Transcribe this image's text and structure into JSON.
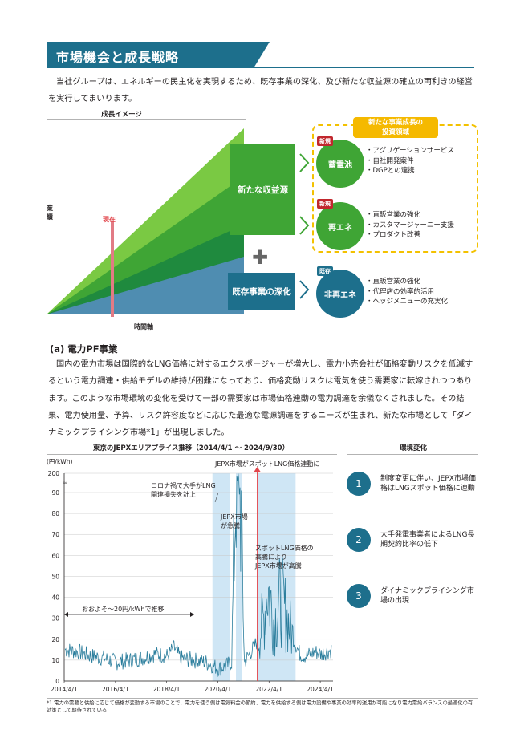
{
  "section": {
    "title": "市場機会と成長戦略",
    "intro": "当社グループは、エネルギーの民主化を実現するため、既存事業の深化、及び新たな収益源の確立の両利きの経営を実行してまいります。"
  },
  "growth_image": {
    "title": "成長イメージ",
    "ylabel": "業績",
    "xlabel": "時間軸",
    "now_label": "現在",
    "new_source_label": "新たな収益源",
    "existing_label": "既存事業の深化",
    "invest_area_label_1": "新たな事業成長の",
    "invest_area_label_2": "投資領域",
    "tag_new": "新規",
    "tag_existing": "既存",
    "battery": {
      "label": "蓄電池",
      "items": [
        "アグリゲーションサービス",
        "自社開発案件",
        "DGPとの連携"
      ]
    },
    "renewable": {
      "label": "再エネ",
      "items": [
        "直販営業の強化",
        "カスタマージャーニー支援",
        "プロダクト改善"
      ]
    },
    "non_renewable": {
      "label": "非再エネ",
      "items": [
        "直販営業の強化",
        "代理店の効率的活用",
        "ヘッジメニューの充実化"
      ]
    },
    "colors": {
      "green": "#3fa535",
      "blue": "#1d6f8c",
      "yellow": "#f5b900",
      "red": "#e2474d"
    }
  },
  "section_a": {
    "heading": "(a)  電力PF事業",
    "body": "国内の電力市場は国際的なLNG価格に対するエクスポージャーが増大し、電力小売会社が価格変動リスクを低減するという電力調達・供給モデルの維持が困難になっており、価格変動リスクは電気を使う需要家に転嫁されつつあります。このような市場環境の変化を受けて一部の需要家は市場価格連動の電力調達を余儀なくされました。その結果、電力使用量、予算、リスク許容度などに応じた最適な電源調達をするニーズが生まれ、新たな市場として「ダイナミックプライシング市場*1」が出現しました。"
  },
  "chart_data": {
    "type": "line",
    "title": "東京のJEPXエリアプライス推移（2014/4/1 ～ 2024/9/30）",
    "ylabel": "(円/kWh)",
    "xlabel": "",
    "x_ticks": [
      "2014/4/1",
      "2016/4/1",
      "2018/4/1",
      "2020/4/1",
      "2022/4/1",
      "2024/4/1"
    ],
    "y_ticks": [
      0,
      10,
      20,
      30,
      40,
      50,
      60,
      70,
      80,
      90,
      200
    ],
    "ylim": [
      0,
      200
    ],
    "y_axis_break": "90-200",
    "grid": true,
    "series": [
      {
        "values_note": "",
        "x": [
          "2014/4",
          "2014/10",
          "2015/4",
          "2015/10",
          "2016/4",
          "2016/10",
          "2017/4",
          "2017/10",
          "2018/4",
          "2018/7",
          "2018/10",
          "2019/4",
          "2019/10",
          "2020/4",
          "2020/7",
          "2020/10",
          "2021/1",
          "2021/4",
          "2021/10",
          "2022/1",
          "2022/3",
          "2022/6",
          "2022/9",
          "2022/12",
          "2023/3",
          "2023/6",
          "2023/9",
          "2024/1",
          "2024/4",
          "2024/9"
        ],
        "y": [
          15,
          14,
          12,
          11,
          9,
          10,
          11,
          13,
          12,
          16,
          11,
          10,
          9,
          6,
          7,
          9,
          150,
          9,
          19,
          30,
          45,
          28,
          40,
          30,
          20,
          13,
          12,
          14,
          13,
          15
        ]
      }
    ],
    "annotations": [
      "JEPX市場がスポットLNG価格連動に",
      "コロナ禍で大手がLNG関連損失を計上",
      "JEPX市場が急騰",
      "スポットLNG価格の高騰により JEPX市場が高騰",
      "おおよそ～20円/kWhで推移"
    ],
    "colors": {
      "line": "#2a7d9c",
      "highlight": "#cfe6f5",
      "marker": "#e2474d"
    }
  },
  "env_change": {
    "title": "環境変化",
    "items": [
      {
        "num": "1",
        "text": "制度変更に伴い、JEPX市場価格はLNGスポット価格に連動"
      },
      {
        "num": "2",
        "text": "大手発電事業者によるLNG長期契約比率の低下"
      },
      {
        "num": "3",
        "text": "ダイナミックプライシング市場の出現"
      }
    ]
  },
  "footnote": "*1  電力の需要と供給に応じて価格が変動する市場のことで、電力を使う側は電気料金の節約、電力を供給する側は電力設備や事業の効率的運用が可能になり電力需給バランスの最適化の有効策として期待されている"
}
